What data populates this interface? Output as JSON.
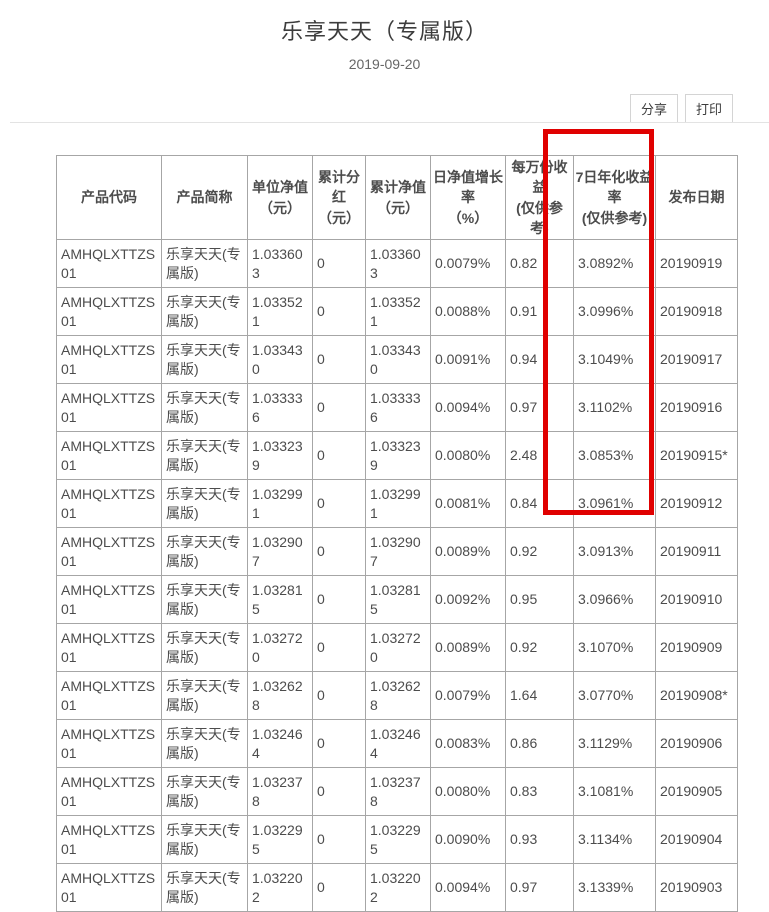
{
  "page": {
    "title": "乐享天天（专属版）",
    "date": "2019-09-20"
  },
  "toolbar": {
    "share_label": "分享",
    "print_label": "打印"
  },
  "table": {
    "headers": [
      "产品代码",
      "产品简称",
      "单位净值\n（元）",
      "累计分\n红\n（元）",
      "累计净值\n（元）",
      "日净值增长\n率\n（%）",
      "每万份收益\n(仅供参\n考)",
      "7日年化收益\n率\n(仅供参考)",
      "发布日期"
    ],
    "rows": [
      [
        "AMHQLXTTZS01",
        "乐享天天(专属版)",
        "1.033603",
        "0",
        "1.033603",
        "0.0079%",
        "0.82",
        "3.0892%",
        "20190919"
      ],
      [
        "AMHQLXTTZS01",
        "乐享天天(专属版)",
        "1.033521",
        "0",
        "1.033521",
        "0.0088%",
        "0.91",
        "3.0996%",
        "20190918"
      ],
      [
        "AMHQLXTTZS01",
        "乐享天天(专属版)",
        "1.033430",
        "0",
        "1.033430",
        "0.0091%",
        "0.94",
        "3.1049%",
        "20190917"
      ],
      [
        "AMHQLXTTZS01",
        "乐享天天(专属版)",
        "1.033336",
        "0",
        "1.033336",
        "0.0094%",
        "0.97",
        "3.1102%",
        "20190916"
      ],
      [
        "AMHQLXTTZS01",
        "乐享天天(专属版)",
        "1.033239",
        "0",
        "1.033239",
        "0.0080%",
        "2.48",
        "3.0853%",
        "20190915*"
      ],
      [
        "AMHQLXTTZS01",
        "乐享天天(专属版)",
        "1.032991",
        "0",
        "1.032991",
        "0.0081%",
        "0.84",
        "3.0961%",
        "20190912"
      ],
      [
        "AMHQLXTTZS01",
        "乐享天天(专属版)",
        "1.032907",
        "0",
        "1.032907",
        "0.0089%",
        "0.92",
        "3.0913%",
        "20190911"
      ],
      [
        "AMHQLXTTZS01",
        "乐享天天(专属版)",
        "1.032815",
        "0",
        "1.032815",
        "0.0092%",
        "0.95",
        "3.0966%",
        "20190910"
      ],
      [
        "AMHQLXTTZS01",
        "乐享天天(专属版)",
        "1.032720",
        "0",
        "1.032720",
        "0.0089%",
        "0.92",
        "3.1070%",
        "20190909"
      ],
      [
        "AMHQLXTTZS01",
        "乐享天天(专属版)",
        "1.032628",
        "0",
        "1.032628",
        "0.0079%",
        "1.64",
        "3.0770%",
        "20190908*"
      ],
      [
        "AMHQLXTTZS01",
        "乐享天天(专属版)",
        "1.032464",
        "0",
        "1.032464",
        "0.0083%",
        "0.86",
        "3.1129%",
        "20190906"
      ],
      [
        "AMHQLXTTZS01",
        "乐享天天(专属版)",
        "1.032378",
        "0",
        "1.032378",
        "0.0080%",
        "0.83",
        "3.1081%",
        "20190905"
      ],
      [
        "AMHQLXTTZS01",
        "乐享天天(专属版)",
        "1.032295",
        "0",
        "1.032295",
        "0.0090%",
        "0.93",
        "3.1134%",
        "20190904"
      ],
      [
        "AMHQLXTTZS01",
        "乐享天天(专属版)",
        "1.032202",
        "0",
        "1.032202",
        "0.0094%",
        "0.97",
        "3.1339%",
        "20190903"
      ]
    ]
  },
  "highlight": {
    "color": "#e00000",
    "highlighted_column": "7日年化收益率(仅供参考)"
  }
}
